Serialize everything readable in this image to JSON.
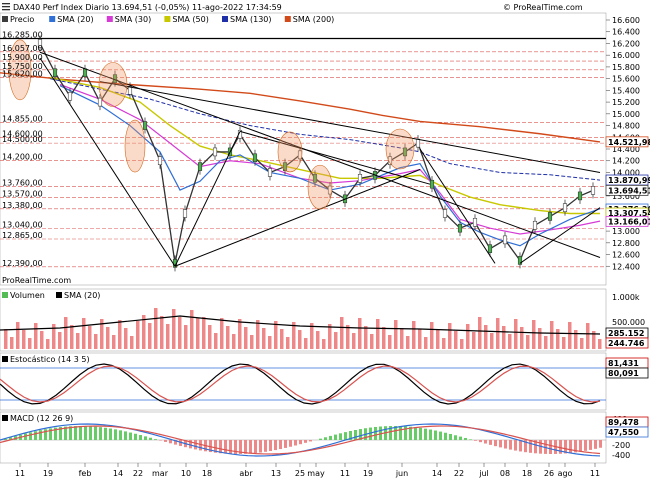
{
  "header": {
    "title": "DAX40 Perf Index Diario 13.694,51 (-0,05%) 11-ago-2022 17:34:59",
    "source": "© ProRealTime.com",
    "watermark": "ProRealTime.com"
  },
  "chart_data": [
    {
      "type": "line",
      "panel": "price",
      "legend": [
        {
          "name": "Precio",
          "color": "#3c3c3c"
        },
        {
          "name": "SMA (20)",
          "color": "#2f6fd6"
        },
        {
          "name": "SMA (30)",
          "color": "#d63bd6"
        },
        {
          "name": "SMA (50)",
          "color": "#c8c800"
        },
        {
          "name": "SMA (130)",
          "color": "#1e2fa8"
        },
        {
          "name": "SMA (200)",
          "color": "#d24a1a"
        }
      ],
      "ylim": [
        12200,
        16600
      ],
      "y_ticks": [
        "16.600",
        "16.400",
        "16.200",
        "16.000",
        "15.800",
        "15.600",
        "15.400",
        "15.200",
        "15.000",
        "14.800",
        "14.600",
        "14.400",
        "14.200",
        "14.000",
        "13.800",
        "13.600",
        "13.400",
        "13.200",
        "13.000",
        "12.800",
        "12.600",
        "12.400"
      ],
      "left_levels": [
        {
          "label": "16.285,00",
          "value": 16285,
          "color": "black"
        },
        {
          "label": "16.057,00",
          "value": 16057,
          "color": "black"
        },
        {
          "label": "15.900,00",
          "value": 15900,
          "color": "black"
        },
        {
          "label": "15.750,00",
          "value": 15750,
          "color": "black"
        },
        {
          "label": "15.620,00",
          "value": 15620,
          "color": "black"
        },
        {
          "label": "14.855,00",
          "value": 14855,
          "color": "black"
        },
        {
          "label": "14.600,00",
          "value": 14600,
          "color": "black"
        },
        {
          "label": "14.500,00",
          "value": 14500,
          "color": "black"
        },
        {
          "label": "14.200,00",
          "value": 14200,
          "color": "black"
        },
        {
          "label": "13.760,00",
          "value": 13760,
          "color": "black"
        },
        {
          "label": "13.570,00",
          "value": 13570,
          "color": "black"
        },
        {
          "label": "13.380,00",
          "value": 13380,
          "color": "black"
        },
        {
          "label": "13.040,00",
          "value": 13040,
          "color": "red"
        },
        {
          "label": "12.865,00",
          "value": 12865,
          "color": "red"
        },
        {
          "label": "12.390,00",
          "value": 12390,
          "color": "red"
        }
      ],
      "right_tags": [
        {
          "label": "14.521,98",
          "value": 14521.98,
          "color": "#d24a1a"
        },
        {
          "label": "13.870,99",
          "value": 13870.99,
          "color": "#1e2fa8"
        },
        {
          "label": "13.694,51",
          "value": 13694.51,
          "color": "#3c3c3c"
        },
        {
          "label": "13.376,30",
          "value": 13376.3,
          "color": "#2f6fd6"
        },
        {
          "label": "13.307,54",
          "value": 13307.54,
          "color": "#c8c800"
        },
        {
          "label": "13.166,01",
          "value": 13166.01,
          "color": "#d63bd6"
        }
      ],
      "sma200": [
        [
          0,
          15700
        ],
        [
          60,
          15590
        ],
        [
          120,
          15510
        ],
        [
          200,
          15420
        ],
        [
          250,
          15350
        ],
        [
          300,
          15220
        ],
        [
          350,
          15080
        ],
        [
          380,
          14980
        ],
        [
          420,
          14870
        ],
        [
          480,
          14780
        ],
        [
          540,
          14660
        ],
        [
          600,
          14520
        ]
      ],
      "sma130": [
        [
          50,
          15600
        ],
        [
          100,
          15420
        ],
        [
          150,
          15250
        ],
        [
          200,
          15000
        ],
        [
          250,
          14800
        ],
        [
          300,
          14650
        ],
        [
          350,
          14560
        ],
        [
          400,
          14420
        ],
        [
          420,
          14350
        ],
        [
          450,
          14150
        ],
        [
          500,
          14000
        ],
        [
          550,
          13960
        ],
        [
          600,
          13870
        ]
      ],
      "sma50": [
        [
          50,
          15620
        ],
        [
          100,
          15450
        ],
        [
          140,
          15200
        ],
        [
          170,
          14800
        ],
        [
          200,
          14450
        ],
        [
          230,
          14300
        ],
        [
          260,
          14200
        ],
        [
          300,
          14050
        ],
        [
          340,
          13900
        ],
        [
          380,
          13900
        ],
        [
          420,
          13950
        ],
        [
          440,
          13780
        ],
        [
          470,
          13580
        ],
        [
          500,
          13450
        ],
        [
          540,
          13350
        ],
        [
          570,
          13300
        ],
        [
          600,
          13300
        ]
      ],
      "sma30": [
        [
          60,
          15500
        ],
        [
          100,
          15250
        ],
        [
          140,
          14900
        ],
        [
          170,
          14500
        ],
        [
          200,
          14100
        ],
        [
          230,
          14200
        ],
        [
          260,
          14150
        ],
        [
          300,
          13900
        ],
        [
          330,
          13820
        ],
        [
          360,
          13860
        ],
        [
          400,
          13980
        ],
        [
          420,
          14050
        ],
        [
          440,
          13650
        ],
        [
          460,
          13200
        ],
        [
          490,
          13050
        ],
        [
          520,
          12950
        ],
        [
          550,
          13020
        ],
        [
          580,
          13100
        ],
        [
          600,
          13170
        ]
      ],
      "sma20": [
        [
          60,
          15480
        ],
        [
          100,
          15150
        ],
        [
          130,
          14800
        ],
        [
          160,
          14350
        ],
        [
          180,
          13700
        ],
        [
          200,
          13850
        ],
        [
          220,
          14200
        ],
        [
          240,
          14300
        ],
        [
          270,
          14000
        ],
        [
          300,
          13900
        ],
        [
          330,
          13700
        ],
        [
          360,
          13800
        ],
        [
          400,
          14080
        ],
        [
          420,
          14150
        ],
        [
          440,
          13600
        ],
        [
          460,
          13150
        ],
        [
          480,
          12980
        ],
        [
          500,
          12850
        ],
        [
          520,
          12750
        ],
        [
          540,
          12950
        ],
        [
          570,
          13200
        ],
        [
          600,
          13380
        ]
      ],
      "price": [
        [
          40,
          16200
        ],
        [
          55,
          15700
        ],
        [
          70,
          15300
        ],
        [
          85,
          15700
        ],
        [
          100,
          15200
        ],
        [
          115,
          15600
        ],
        [
          130,
          15400
        ],
        [
          145,
          14800
        ],
        [
          160,
          14200
        ],
        [
          175,
          12450
        ],
        [
          185,
          13300
        ],
        [
          200,
          14100
        ],
        [
          215,
          14350
        ],
        [
          230,
          14350
        ],
        [
          240,
          14650
        ],
        [
          255,
          14250
        ],
        [
          270,
          14000
        ],
        [
          285,
          14100
        ],
        [
          300,
          14300
        ],
        [
          315,
          13900
        ],
        [
          330,
          13700
        ],
        [
          345,
          13550
        ],
        [
          360,
          13900
        ],
        [
          375,
          13950
        ],
        [
          390,
          14200
        ],
        [
          405,
          14350
        ],
        [
          418,
          14500
        ],
        [
          432,
          13800
        ],
        [
          445,
          13300
        ],
        [
          460,
          13050
        ],
        [
          475,
          13150
        ],
        [
          490,
          12700
        ],
        [
          505,
          12850
        ],
        [
          520,
          12500
        ],
        [
          535,
          13100
        ],
        [
          550,
          13250
        ],
        [
          565,
          13400
        ],
        [
          580,
          13600
        ],
        [
          593,
          13694
        ]
      ]
    },
    {
      "type": "bar",
      "panel": "volume",
      "legend": [
        {
          "name": "Volumen",
          "color": "#55bb55"
        },
        {
          "name": "SMA (20)",
          "color": "#000000"
        }
      ],
      "y_ticks": [
        "1.000k",
        "500.000"
      ],
      "right_tags": [
        {
          "label": "285.152",
          "value": 285152,
          "color": "#000000"
        },
        {
          "label": "244.746",
          "value": 244746,
          "color": "#cc0000"
        }
      ]
    },
    {
      "type": "line",
      "panel": "stochastic",
      "legend": [
        {
          "name": "Estocástico (14 3 5)",
          "color": "#000000"
        }
      ],
      "right_tags": [
        {
          "label": "81,431",
          "value": 81.431,
          "color": "#cc0000"
        },
        {
          "label": "80,091",
          "value": 80.091,
          "color": "#000000"
        }
      ]
    },
    {
      "type": "bar",
      "panel": "macd",
      "legend": [
        {
          "name": "MACD (12 26 9)",
          "color": "#000000"
        }
      ],
      "y_ticks": [
        "400",
        "200",
        "-200",
        "-400"
      ],
      "right_tags": [
        {
          "label": "89,478",
          "value": 89.478,
          "color": "#cc0000"
        },
        {
          "label": "47,550",
          "value": 47.55,
          "color": "#2f6fd6"
        }
      ]
    }
  ],
  "x_axis": {
    "labels": [
      {
        "t": "11",
        "x": 20
      },
      {
        "t": "19",
        "x": 48
      },
      {
        "t": "feb",
        "x": 85
      },
      {
        "t": "14",
        "x": 118
      },
      {
        "t": "22",
        "x": 138
      },
      {
        "t": "mar",
        "x": 160
      },
      {
        "t": "10",
        "x": 186
      },
      {
        "t": "18",
        "x": 207
      },
      {
        "t": "abr",
        "x": 246
      },
      {
        "t": "13",
        "x": 276
      },
      {
        "t": "25",
        "x": 300
      },
      {
        "t": "may",
        "x": 316
      },
      {
        "t": "11",
        "x": 345
      },
      {
        "t": "19",
        "x": 368
      },
      {
        "t": "jun",
        "x": 402
      },
      {
        "t": "14",
        "x": 437
      },
      {
        "t": "22",
        "x": 459
      },
      {
        "t": "jul",
        "x": 484
      },
      {
        "t": "08",
        "x": 505
      },
      {
        "t": "18",
        "x": 527
      },
      {
        "t": "26",
        "x": 549
      },
      {
        "t": "ago",
        "x": 565
      },
      {
        "t": "11",
        "x": 595
      }
    ]
  }
}
